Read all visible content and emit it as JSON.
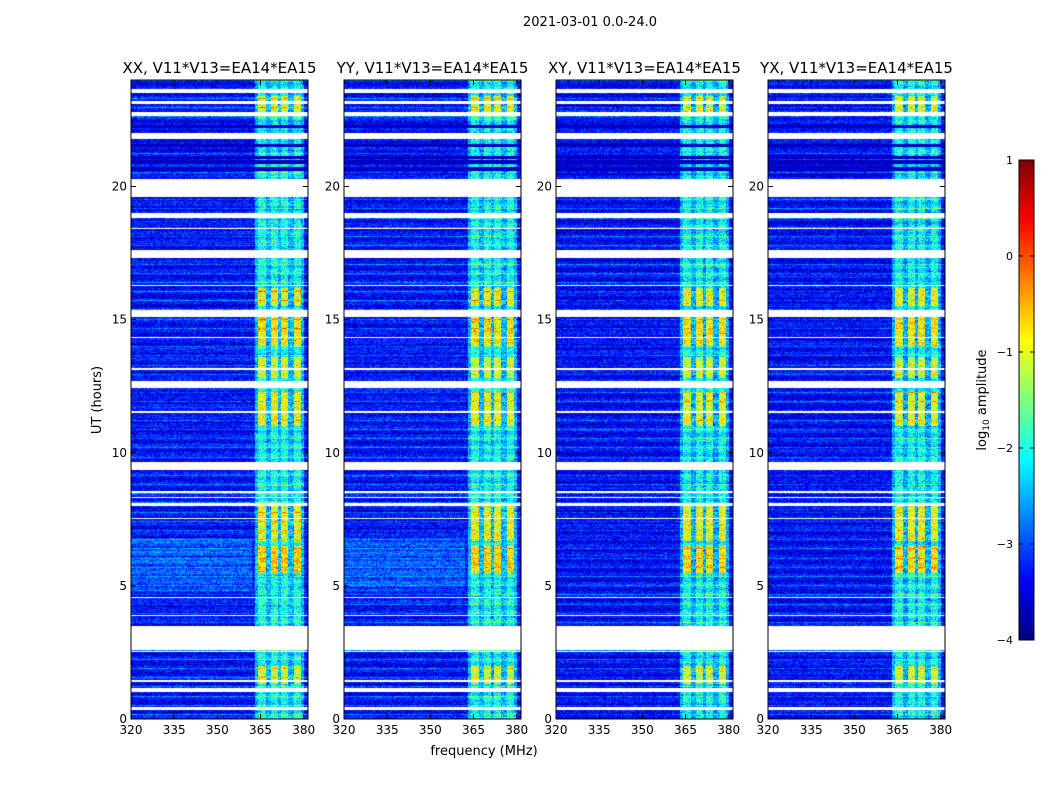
{
  "chart_data": {
    "type": "heatmap",
    "suptitle": "2021-03-01 0.0-24.0",
    "xlabel": "frequency (MHz)",
    "ylabel": "UT (hours)",
    "xlim": [
      320,
      381.5
    ],
    "ylim": [
      0,
      24
    ],
    "xticks": [
      320,
      335,
      350,
      365,
      380
    ],
    "yticks": [
      0,
      5,
      10,
      15,
      20
    ],
    "panels": [
      {
        "title": "XX, V11*V13=EA14*EA15"
      },
      {
        "title": "YY, V11*V13=EA14*EA15"
      },
      {
        "title": "XY, V11*V13=EA14*EA15"
      },
      {
        "title": "YX, V11*V13=EA14*EA15"
      }
    ],
    "colorbar": {
      "label_prefix": "log",
      "label_sub": "10",
      "label_suffix": " amplitude",
      "range": [
        -4,
        1
      ],
      "ticks": [
        1,
        0,
        -1,
        -2,
        -3,
        -4
      ],
      "colormap": "jet",
      "stops": [
        "#00007f",
        "#0000ff",
        "#007fff",
        "#00ffff",
        "#7fff7f",
        "#ffff00",
        "#ff7f00",
        "#ff0000",
        "#7f0000"
      ]
    },
    "flagged_ut_ranges": [
      [
        0.35,
        0.45
      ],
      [
        1.0,
        1.15
      ],
      [
        1.4,
        1.45
      ],
      [
        2.5,
        2.55
      ],
      [
        2.6,
        3.5
      ],
      [
        3.85,
        3.9
      ],
      [
        4.55,
        4.6
      ],
      [
        7.5,
        7.55
      ],
      [
        8.0,
        8.1
      ],
      [
        8.3,
        8.35
      ],
      [
        8.5,
        8.55
      ],
      [
        9.35,
        9.65
      ],
      [
        11.5,
        11.55
      ],
      [
        12.45,
        12.7
      ],
      [
        13.1,
        13.2
      ],
      [
        14.3,
        14.35
      ],
      [
        15.1,
        15.35
      ],
      [
        16.25,
        16.3
      ],
      [
        17.3,
        17.6
      ],
      [
        18.4,
        18.45
      ],
      [
        18.8,
        19.0
      ],
      [
        19.6,
        20.3
      ],
      [
        21.8,
        22.0
      ],
      [
        22.65,
        22.8
      ],
      [
        23.1,
        23.2
      ],
      [
        23.5,
        23.65
      ]
    ],
    "dark_ut_ranges": [
      [
        20.6,
        20.75
      ],
      [
        20.85,
        21.0
      ],
      [
        21.05,
        21.15
      ],
      [
        21.5,
        21.6
      ],
      [
        22.2,
        22.3
      ]
    ],
    "rfi_band_mhz": [
      [
        364,
        367
      ],
      [
        368.5,
        371
      ],
      [
        372,
        374.5
      ],
      [
        376.5,
        379
      ]
    ],
    "rfi_hot_ut_ranges": [
      [
        5.5,
        6.5,
        0.55
      ],
      [
        6.7,
        8.0,
        0.4
      ],
      [
        11.0,
        12.3,
        0.4
      ],
      [
        14.0,
        15.2,
        0.5
      ],
      [
        15.5,
        16.2,
        0.4
      ],
      [
        12.8,
        13.6,
        0.3
      ],
      [
        22.8,
        23.4,
        0.35
      ],
      [
        1.3,
        2.0,
        0.3
      ]
    ]
  }
}
